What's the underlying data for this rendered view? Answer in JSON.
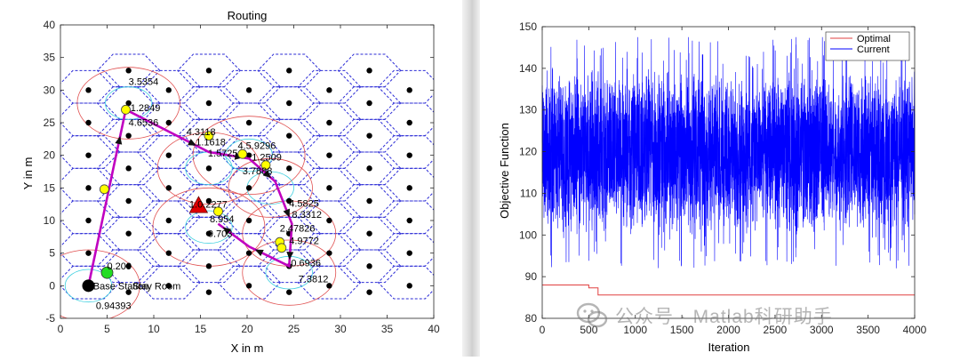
{
  "chart_data": [
    {
      "type": "scatter",
      "title": "Routing",
      "xlabel": "X in m",
      "ylabel": "Y in m",
      "xlim": [
        0,
        40
      ],
      "ylim": [
        -5,
        40
      ],
      "xticks": [
        "0",
        "5",
        "10",
        "15",
        "20",
        "25",
        "30",
        "35",
        "40"
      ],
      "yticks": [
        "-5",
        "0",
        "5",
        "10",
        "15",
        "20",
        "25",
        "30",
        "35",
        "40"
      ],
      "grid": false,
      "hex_grid": {
        "hex_radius": 3.35,
        "centers": [
          [
            3,
            5.5
          ],
          [
            7.3,
            3
          ],
          [
            11.6,
            5.5
          ],
          [
            15.9,
            3
          ],
          [
            20.2,
            5.5
          ],
          [
            24.5,
            3
          ],
          [
            28.8,
            5.5
          ],
          [
            33.1,
            3
          ],
          [
            37.4,
            5.5
          ],
          [
            3,
            10.5
          ],
          [
            7.3,
            8
          ],
          [
            11.6,
            10.5
          ],
          [
            15.9,
            8
          ],
          [
            20.2,
            10.5
          ],
          [
            24.5,
            8
          ],
          [
            28.8,
            10.5
          ],
          [
            33.1,
            8
          ],
          [
            37.4,
            10.5
          ],
          [
            3,
            15.5
          ],
          [
            7.3,
            13
          ],
          [
            11.6,
            15.5
          ],
          [
            15.9,
            13
          ],
          [
            20.2,
            15.5
          ],
          [
            24.5,
            13
          ],
          [
            28.8,
            15.5
          ],
          [
            33.1,
            13
          ],
          [
            37.4,
            15.5
          ],
          [
            3,
            20.5
          ],
          [
            7.3,
            18
          ],
          [
            11.6,
            20.5
          ],
          [
            15.9,
            18
          ],
          [
            20.2,
            20.5
          ],
          [
            24.5,
            18
          ],
          [
            28.8,
            20.5
          ],
          [
            33.1,
            18
          ],
          [
            37.4,
            20.5
          ],
          [
            3,
            25.5
          ],
          [
            7.3,
            23
          ],
          [
            11.6,
            25.5
          ],
          [
            15.9,
            23
          ],
          [
            20.2,
            25.5
          ],
          [
            24.5,
            23
          ],
          [
            28.8,
            25.5
          ],
          [
            33.1,
            23
          ],
          [
            37.4,
            25.5
          ],
          [
            3,
            30.5
          ],
          [
            7.3,
            28
          ],
          [
            11.6,
            30.5
          ],
          [
            15.9,
            28
          ],
          [
            20.2,
            30.5
          ],
          [
            24.5,
            28
          ],
          [
            28.8,
            30.5
          ],
          [
            33.1,
            28
          ],
          [
            37.4,
            30.5
          ],
          [
            7.3,
            33
          ],
          [
            15.9,
            33
          ],
          [
            24.5,
            33
          ],
          [
            33.1,
            33
          ],
          [
            3,
            0.5
          ],
          [
            11.6,
            0.5
          ],
          [
            20.2,
            0.5
          ],
          [
            28.8,
            0.5
          ],
          [
            37.4,
            0.5
          ]
        ]
      },
      "black_points": [
        [
          3,
          30
        ],
        [
          7.3,
          33
        ],
        [
          11.6,
          30
        ],
        [
          15.9,
          33
        ],
        [
          20.2,
          30
        ],
        [
          24.5,
          33
        ],
        [
          28.8,
          30
        ],
        [
          33.1,
          33
        ],
        [
          37.4,
          30
        ],
        [
          3,
          25
        ],
        [
          7.3,
          28
        ],
        [
          11.6,
          25
        ],
        [
          15.9,
          28
        ],
        [
          20.2,
          25
        ],
        [
          24.5,
          28
        ],
        [
          28.8,
          25
        ],
        [
          33.1,
          28
        ],
        [
          37.4,
          25
        ],
        [
          3,
          20
        ],
        [
          7.3,
          23
        ],
        [
          11.6,
          20
        ],
        [
          15.9,
          23
        ],
        [
          20.2,
          20
        ],
        [
          24.5,
          23
        ],
        [
          28.8,
          20
        ],
        [
          33.1,
          23
        ],
        [
          37.4,
          20
        ],
        [
          3,
          15
        ],
        [
          7.3,
          18
        ],
        [
          11.6,
          15
        ],
        [
          15.9,
          18
        ],
        [
          20.2,
          15
        ],
        [
          24.5,
          18
        ],
        [
          28.8,
          15
        ],
        [
          33.1,
          18
        ],
        [
          37.4,
          15
        ],
        [
          3,
          10
        ],
        [
          7.3,
          13
        ],
        [
          11.6,
          10
        ],
        [
          15.9,
          13
        ],
        [
          20.2,
          10
        ],
        [
          24.5,
          13
        ],
        [
          28.8,
          10
        ],
        [
          33.1,
          13
        ],
        [
          37.4,
          10
        ],
        [
          3,
          5
        ],
        [
          7.3,
          8
        ],
        [
          11.6,
          5
        ],
        [
          15.9,
          8
        ],
        [
          20.2,
          5
        ],
        [
          24.5,
          8
        ],
        [
          28.8,
          5
        ],
        [
          33.1,
          8
        ],
        [
          37.4,
          5
        ],
        [
          7.3,
          3
        ],
        [
          11.6,
          0
        ],
        [
          15.9,
          3
        ],
        [
          20.2,
          0
        ],
        [
          24.5,
          3
        ],
        [
          28.8,
          0
        ],
        [
          33.1,
          3
        ],
        [
          37.4,
          0
        ],
        [
          7.3,
          -1
        ],
        [
          15.9,
          -1
        ],
        [
          24.5,
          -1
        ],
        [
          33.1,
          -1
        ]
      ],
      "big_circles": [
        [
          7.3,
          28,
          5.5
        ],
        [
          15.9,
          18,
          5.5
        ],
        [
          20.2,
          20,
          6
        ],
        [
          15.9,
          9,
          6
        ],
        [
          24.5,
          2,
          5
        ],
        [
          24.5,
          8,
          5
        ],
        [
          3,
          0,
          5.5
        ],
        [
          22.5,
          15,
          4.5
        ]
      ],
      "cyan_circles": [
        [
          7.3,
          28,
          2.5
        ],
        [
          15.9,
          18,
          2.5
        ],
        [
          20.2,
          20,
          2.5
        ],
        [
          15.9,
          9,
          2.5
        ],
        [
          24.5,
          2,
          2.5
        ],
        [
          3,
          0,
          2.5
        ],
        [
          22.5,
          15,
          2.5
        ]
      ],
      "route": [
        [
          3,
          0
        ],
        [
          7,
          27
        ],
        [
          15.9,
          20.5
        ],
        [
          20.2,
          19.5
        ],
        [
          23,
          16
        ],
        [
          24.8,
          9.5
        ],
        [
          24.5,
          3
        ],
        [
          20.2,
          6
        ],
        [
          16.9,
          9.5
        ]
      ],
      "yellow_points": [
        [
          7,
          27
        ],
        [
          15.9,
          23
        ],
        [
          19.5,
          20.2
        ],
        [
          22,
          18.5
        ],
        [
          4.7,
          14.8
        ],
        [
          16.9,
          11.4
        ],
        [
          23.5,
          6.7
        ],
        [
          23.7,
          5.8
        ]
      ],
      "green_point": [
        5,
        2
      ],
      "red_triangle": [
        14.8,
        12.3
      ],
      "base_node": [
        3,
        0
      ],
      "labels": [
        {
          "text": "3.5354",
          "x": 7.3,
          "y": 30.8
        },
        {
          "text": "1.2849",
          "x": 7.5,
          "y": 26.8
        },
        {
          "text": "4.6536",
          "x": 7.3,
          "y": 24.5
        },
        {
          "text": "4.3118",
          "x": 13.5,
          "y": 23.1
        },
        {
          "text": "1.1618",
          "x": 14.5,
          "y": 21.5
        },
        {
          "text": "4.5.9296",
          "x": 19,
          "y": 21
        },
        {
          "text": "1.5725",
          "x": 15.8,
          "y": 19.8
        },
        {
          "text": "1.2509",
          "x": 20.5,
          "y": 19.2
        },
        {
          "text": "3.7888",
          "x": 19.5,
          "y": 17.1
        },
        {
          "text": "4.5825",
          "x": 24.5,
          "y": 12.1
        },
        {
          "text": "1.0.2277",
          "x": 13.8,
          "y": 12.0
        },
        {
          "text": "8.954",
          "x": 16,
          "y": 9.7
        },
        {
          "text": "8.3312",
          "x": 24.8,
          "y": 10.4
        },
        {
          "text": "9.703",
          "x": 15.8,
          "y": 7.5
        },
        {
          "text": "2.47826",
          "x": 23.5,
          "y": 8.3
        },
        {
          "text": "4.9772",
          "x": 24.5,
          "y": 6.4
        },
        {
          "text": "0.6936",
          "x": 24.7,
          "y": 3.0
        },
        {
          "text": "7.3812",
          "x": 25.5,
          "y": 0.5
        },
        {
          "text": "0.209",
          "x": 5,
          "y": 2.5
        },
        {
          "text": "Base Station",
          "x": 3.5,
          "y": -0.6
        },
        {
          "text": "Stay Room",
          "x": 7.7,
          "y": -0.6
        },
        {
          "text": "0.94393",
          "x": 3.8,
          "y": -3.6
        }
      ]
    },
    {
      "type": "line",
      "title": "",
      "xlabel": "Iteration",
      "ylabel": "Objective Function",
      "xlim": [
        0,
        4000
      ],
      "ylim": [
        80,
        150
      ],
      "xticks": [
        "0",
        "500",
        "1000",
        "1500",
        "2000",
        "2500",
        "3000",
        "3500",
        "4000"
      ],
      "yticks": [
        "80",
        "90",
        "100",
        "110",
        "120",
        "130",
        "140",
        "150"
      ],
      "grid": false,
      "legend": "top-right",
      "series": [
        {
          "name": "Optimal",
          "color": "#e04040",
          "steps": [
            [
              0,
              88
            ],
            [
              500,
              88
            ],
            [
              500,
              87.3
            ],
            [
              600,
              87.3
            ],
            [
              600,
              85.6
            ],
            [
              4000,
              85.6
            ]
          ]
        },
        {
          "name": "Current",
          "color": "#0000ff",
          "noise": {
            "n_points": 4000,
            "mean": 120,
            "spread": 14,
            "min": 85.6,
            "max": 147.5
          }
        }
      ]
    }
  ],
  "watermark": {
    "text": "公众号 · Matlab科研助手",
    "icon": "wechat-icon"
  }
}
